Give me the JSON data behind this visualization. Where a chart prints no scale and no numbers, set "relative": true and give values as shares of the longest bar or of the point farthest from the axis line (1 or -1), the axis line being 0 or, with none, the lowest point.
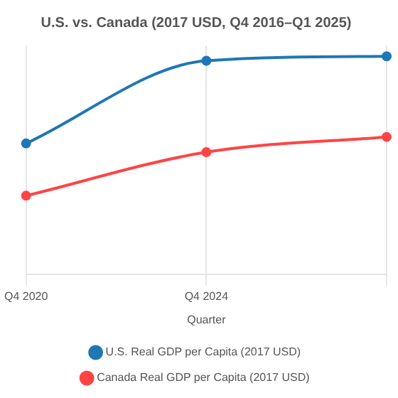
{
  "chart_data": {
    "type": "line",
    "title": "U.S. vs. Canada (2017 USD, Q4 2016–Q1 2025)",
    "xlabel": "Quarter",
    "categories": [
      "Q4 2020",
      "Q4 2024",
      null
    ],
    "relative": true,
    "grid": true,
    "legend": "bottom",
    "marker": "circle",
    "line_style": "solid",
    "series": [
      {
        "name": "U.S. Real GDP per Capita (2017 USD)",
        "color": "#1f77b4",
        "values": [
          0.6,
          0.98,
          1
        ]
      },
      {
        "name": "Canada Real GDP per Capita (2017 USD)",
        "color": "#ff4444",
        "values": [
          0.36,
          0.56,
          0.63
        ]
      }
    ]
  }
}
